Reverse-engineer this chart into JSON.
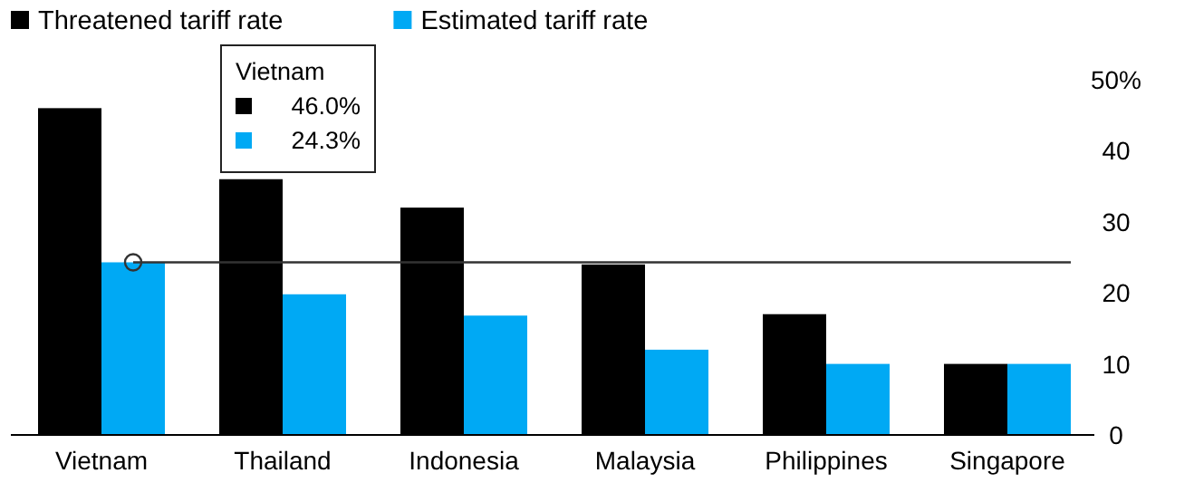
{
  "chart_data": {
    "type": "bar",
    "categories": [
      "Vietnam",
      "Thailand",
      "Indonesia",
      "Malaysia",
      "Philippines",
      "Singapore"
    ],
    "series": [
      {
        "name": "Threatened tariff rate",
        "color": "#000000",
        "values": [
          46,
          36,
          32,
          24,
          17,
          10
        ]
      },
      {
        "name": "Estimated tariff rate",
        "color": "#00a9f4",
        "values": [
          24.3,
          19.8,
          16.8,
          12,
          10,
          10
        ]
      }
    ],
    "ylim": [
      0,
      50
    ],
    "yticks": [
      0,
      10,
      20,
      30,
      40,
      {
        "value": 50,
        "label": "50%"
      }
    ],
    "ref_lines": [
      {
        "axis": "y",
        "value": 24.3,
        "color": "#333333"
      }
    ],
    "annotations": [
      "Vietnam",
      "46.0%",
      "24.3%"
    ],
    "legend": "top left",
    "grid": false
  }
}
